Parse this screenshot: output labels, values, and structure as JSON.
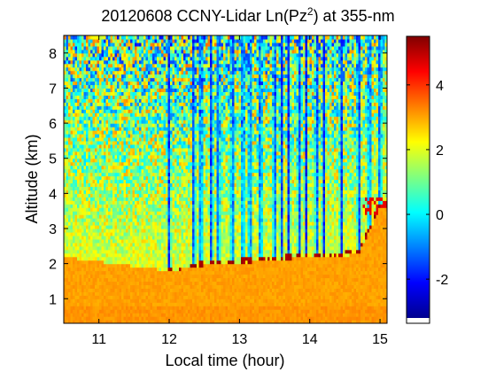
{
  "chart_data": {
    "type": "heatmap",
    "title": "20120608 CCNY-Lidar Ln(Pz",
    "title_superscript": "2",
    "title_suffix": ") at 355-nm",
    "xlabel": "Local time (hour)",
    "ylabel": "Altitude (km)",
    "xlim": [
      10.5,
      15.1
    ],
    "ylim": [
      0.3,
      8.5
    ],
    "x_ticks": [
      11,
      12,
      13,
      14,
      15
    ],
    "y_ticks": [
      1,
      2,
      3,
      4,
      5,
      6,
      7,
      8
    ],
    "colorbar": {
      "min": -3.2,
      "max": 5.5,
      "ticks": [
        -2,
        0,
        2,
        4
      ],
      "colormap": "jet"
    },
    "grid": false,
    "description_features": {
      "boundary_layer_top_km_by_time": [
        {
          "t": 10.5,
          "z": 2.2
        },
        {
          "t": 12.0,
          "z": 1.8
        },
        {
          "t": 12.5,
          "z": 1.95
        },
        {
          "t": 13.5,
          "z": 2.1
        },
        {
          "t": 14.0,
          "z": 2.2
        },
        {
          "t": 14.3,
          "z": 2.15
        },
        {
          "t": 14.7,
          "z": 2.3
        },
        {
          "t": 15.0,
          "z": 3.6
        }
      ],
      "cloud_columns_hours": [
        12.0,
        12.35,
        12.45,
        12.6,
        12.7,
        12.9,
        13.05,
        13.15,
        13.3,
        13.5,
        13.6,
        13.7,
        13.85,
        13.95,
        14.1,
        14.2,
        14.45,
        14.7,
        14.85,
        15.0
      ]
    }
  },
  "colors": {
    "jet_stops": [
      "#00008f",
      "#0000ff",
      "#0080ff",
      "#00ffff",
      "#80ff80",
      "#ffff00",
      "#ff8000",
      "#ff0000",
      "#800000"
    ]
  }
}
